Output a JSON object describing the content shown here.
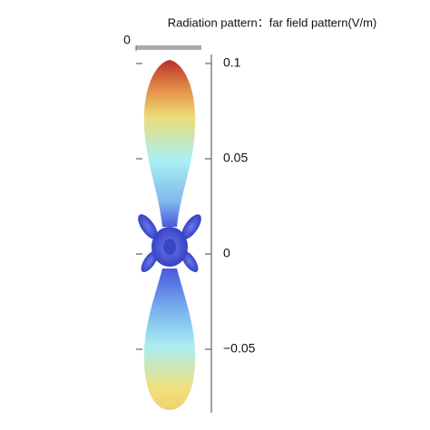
{
  "chart_data": {
    "type": "radiation",
    "title": "Radiation pattern：far field pattern(V/m)",
    "xticks": [
      0
    ],
    "ylim": [
      -0.08,
      0.1
    ],
    "yticks": [
      0.1,
      0.05,
      0,
      {
        "value": -0.05,
        "label": "−0.05"
      }
    ]
  }
}
